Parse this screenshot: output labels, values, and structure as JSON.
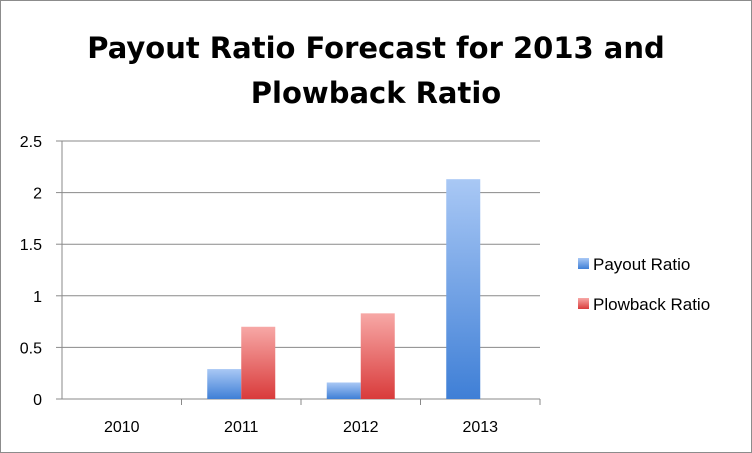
{
  "chart_data": {
    "type": "bar",
    "title_lines": [
      "Payout Ratio Forecast for 2013 and",
      "Plowback Ratio"
    ],
    "categories": [
      "2010",
      "2011",
      "2012",
      "2013"
    ],
    "series": [
      {
        "name": "Payout Ratio",
        "values": [
          0,
          0.29,
          0.16,
          2.13
        ],
        "color": "#4f81bd"
      },
      {
        "name": "Plowback Ratio",
        "values": [
          0,
          0.7,
          0.83,
          0
        ],
        "color": "#c0504d"
      }
    ],
    "ylim": [
      0,
      2.5
    ],
    "yticks": [
      "0",
      "0.5",
      "1",
      "1.5",
      "2",
      "2.5"
    ],
    "ytick_values": [
      0,
      0.5,
      1,
      1.5,
      2,
      2.5
    ],
    "grid": true,
    "legend_position": "right"
  }
}
